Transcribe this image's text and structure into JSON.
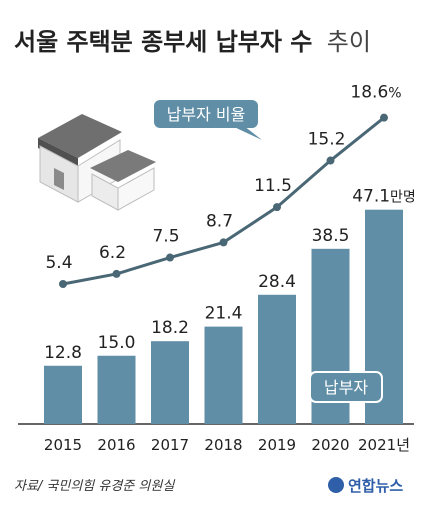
{
  "title_main": "서울 주택분 종부세 납부자 수",
  "title_suffix": "추이",
  "source": "자료/ 국민의힘 유경준 의원실",
  "logo": "연합뉴스",
  "colors": {
    "bar": "#5f8ea6",
    "line": "#4a6775",
    "badge": "#5f8ea6",
    "axis": "#333333",
    "background": "#ffffff"
  },
  "chart_data": {
    "type": "bar",
    "title": "서울 주택분 종부세 납부자 수 추이",
    "categories": [
      "2015",
      "2016",
      "2017",
      "2018",
      "2019",
      "2020",
      "2021"
    ],
    "x_unit": "년",
    "series": [
      {
        "name": "납부자",
        "type": "bar",
        "unit": "만명",
        "values": [
          12.8,
          15.0,
          18.2,
          21.4,
          28.4,
          38.5,
          47.1
        ],
        "labels": [
          "12.8",
          "15.0",
          "18.2",
          "21.4",
          "28.4",
          "38.5",
          "47.1"
        ]
      },
      {
        "name": "납부자 비율",
        "type": "line",
        "unit": "%",
        "values": [
          5.4,
          6.2,
          7.5,
          8.7,
          11.5,
          15.2,
          18.6
        ],
        "labels": [
          "5.4",
          "6.2",
          "7.5",
          "8.7",
          "11.5",
          "15.2",
          "18.6"
        ]
      }
    ],
    "legend": "direct-labels",
    "grid": false
  }
}
